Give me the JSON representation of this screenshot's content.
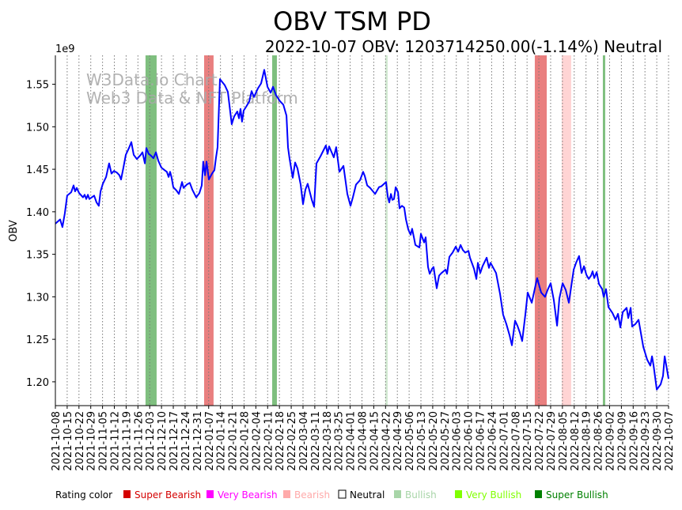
{
  "chart_data": {
    "type": "line",
    "title": "OBV TSM PD",
    "subtitle": "2022-10-07 OBV: 1203714250.00(-1.14%) Neutral",
    "ylabel": "OBV",
    "y_multiplier_label": "1e9",
    "ylim": [
      1.172,
      1.584
    ],
    "yticks": [
      "1.20",
      "1.25",
      "1.30",
      "1.35",
      "1.40",
      "1.45",
      "1.50",
      "1.55"
    ],
    "x_start_date": "2021-10-08",
    "x_range_days": [
      0,
      364
    ],
    "xticks": [
      "2021-10-08",
      "2021-10-15",
      "2021-10-22",
      "2021-10-29",
      "2021-11-05",
      "2021-11-12",
      "2021-11-19",
      "2021-11-26",
      "2021-12-03",
      "2021-12-10",
      "2021-12-17",
      "2021-12-24",
      "2021-12-31",
      "2022-01-07",
      "2022-01-14",
      "2022-01-21",
      "2022-01-28",
      "2022-02-04",
      "2022-02-11",
      "2022-02-18",
      "2022-02-25",
      "2022-03-04",
      "2022-03-11",
      "2022-03-18",
      "2022-03-25",
      "2022-04-01",
      "2022-04-08",
      "2022-04-15",
      "2022-04-22",
      "2022-04-29",
      "2022-05-06",
      "2022-05-13",
      "2022-05-20",
      "2022-05-27",
      "2022-06-03",
      "2022-06-10",
      "2022-06-17",
      "2022-06-24",
      "2022-07-01",
      "2022-07-08",
      "2022-07-15",
      "2022-07-22",
      "2022-07-29",
      "2022-08-05",
      "2022-08-12",
      "2022-08-19",
      "2022-08-26",
      "2022-09-02",
      "2022-09-09",
      "2022-09-16",
      "2022-09-23",
      "2022-09-30",
      "2022-10-07"
    ],
    "grid": "vertical-dotted",
    "watermark": [
      "W3Data.io Chart",
      "Web3 Data & NFT Platform"
    ],
    "series": [
      {
        "name": "OBV",
        "color": "#0000ff",
        "points_day_value": [
          [
            0,
            1.386
          ],
          [
            2.8,
            1.391
          ],
          [
            4.2,
            1.382
          ],
          [
            5.6,
            1.398
          ],
          [
            7.0,
            1.419
          ],
          [
            9.4,
            1.423
          ],
          [
            10.8,
            1.431
          ],
          [
            11.7,
            1.424
          ],
          [
            12.7,
            1.428
          ],
          [
            14.1,
            1.422
          ],
          [
            16.4,
            1.417
          ],
          [
            17.4,
            1.42
          ],
          [
            18.3,
            1.415
          ],
          [
            19.3,
            1.42
          ],
          [
            20.2,
            1.415
          ],
          [
            21.6,
            1.417
          ],
          [
            23.0,
            1.419
          ],
          [
            24.4,
            1.411
          ],
          [
            25.8,
            1.407
          ],
          [
            26.8,
            1.424
          ],
          [
            28.2,
            1.433
          ],
          [
            30.1,
            1.441
          ],
          [
            31.9,
            1.457
          ],
          [
            33.3,
            1.445
          ],
          [
            34.8,
            1.448
          ],
          [
            36.6,
            1.446
          ],
          [
            38.0,
            1.443
          ],
          [
            39.0,
            1.438
          ],
          [
            40.4,
            1.452
          ],
          [
            41.8,
            1.467
          ],
          [
            43.7,
            1.475
          ],
          [
            45.1,
            1.482
          ],
          [
            46.5,
            1.467
          ],
          [
            48.4,
            1.462
          ],
          [
            50.7,
            1.467
          ],
          [
            51.7,
            1.47
          ],
          [
            53.1,
            1.457
          ],
          [
            54.0,
            1.475
          ],
          [
            55.4,
            1.468
          ],
          [
            56.8,
            1.466
          ],
          [
            58.2,
            1.463
          ],
          [
            59.7,
            1.47
          ],
          [
            61.1,
            1.46
          ],
          [
            62.9,
            1.452
          ],
          [
            64.8,
            1.449
          ],
          [
            66.2,
            1.447
          ],
          [
            67.2,
            1.441
          ],
          [
            68.1,
            1.447
          ],
          [
            69.0,
            1.44
          ],
          [
            70.0,
            1.429
          ],
          [
            71.9,
            1.425
          ],
          [
            73.3,
            1.421
          ],
          [
            75.2,
            1.435
          ],
          [
            76.1,
            1.428
          ],
          [
            78.0,
            1.432
          ],
          [
            79.8,
            1.434
          ],
          [
            81.3,
            1.426
          ],
          [
            83.6,
            1.417
          ],
          [
            85.5,
            1.422
          ],
          [
            86.9,
            1.431
          ],
          [
            87.8,
            1.459
          ],
          [
            88.8,
            1.443
          ],
          [
            89.7,
            1.459
          ],
          [
            91.1,
            1.438
          ],
          [
            93.0,
            1.445
          ],
          [
            94.4,
            1.449
          ],
          [
            95.3,
            1.463
          ],
          [
            96.3,
            1.476
          ],
          [
            97.7,
            1.556
          ],
          [
            100.5,
            1.549
          ],
          [
            102.4,
            1.541
          ],
          [
            104.7,
            1.503
          ],
          [
            106.1,
            1.512
          ],
          [
            108.0,
            1.518
          ],
          [
            109.0,
            1.51
          ],
          [
            109.9,
            1.521
          ],
          [
            110.8,
            1.506
          ],
          [
            111.8,
            1.519
          ],
          [
            113.7,
            1.525
          ],
          [
            115.1,
            1.53
          ],
          [
            116.5,
            1.542
          ],
          [
            117.9,
            1.535
          ],
          [
            120.2,
            1.545
          ],
          [
            122.1,
            1.551
          ],
          [
            124.0,
            1.567
          ],
          [
            125.9,
            1.547
          ],
          [
            127.8,
            1.54
          ],
          [
            129.2,
            1.547
          ],
          [
            131.0,
            1.537
          ],
          [
            133.4,
            1.53
          ],
          [
            135.3,
            1.526
          ],
          [
            137.2,
            1.513
          ],
          [
            138.1,
            1.476
          ],
          [
            139.0,
            1.463
          ],
          [
            140.9,
            1.44
          ],
          [
            142.3,
            1.458
          ],
          [
            143.7,
            1.451
          ],
          [
            145.6,
            1.432
          ],
          [
            147.0,
            1.409
          ],
          [
            148.4,
            1.426
          ],
          [
            149.8,
            1.433
          ],
          [
            152.2,
            1.414
          ],
          [
            153.6,
            1.406
          ],
          [
            155.0,
            1.457
          ],
          [
            157.3,
            1.465
          ],
          [
            160.6,
            1.478
          ],
          [
            161.6,
            1.468
          ],
          [
            162.5,
            1.477
          ],
          [
            165.3,
            1.464
          ],
          [
            166.7,
            1.476
          ],
          [
            168.6,
            1.447
          ],
          [
            171.0,
            1.454
          ],
          [
            173.3,
            1.421
          ],
          [
            175.2,
            1.407
          ],
          [
            176.6,
            1.417
          ],
          [
            178.5,
            1.432
          ],
          [
            180.8,
            1.437
          ],
          [
            182.7,
            1.447
          ],
          [
            183.7,
            1.442
          ],
          [
            185.1,
            1.431
          ],
          [
            186.9,
            1.428
          ],
          [
            189.8,
            1.421
          ],
          [
            192.1,
            1.429
          ],
          [
            193.5,
            1.43
          ],
          [
            196.3,
            1.435
          ],
          [
            197.3,
            1.418
          ],
          [
            198.2,
            1.411
          ],
          [
            199.2,
            1.421
          ],
          [
            200.1,
            1.414
          ],
          [
            201.0,
            1.415
          ],
          [
            202.0,
            1.429
          ],
          [
            203.4,
            1.423
          ],
          [
            204.3,
            1.404
          ],
          [
            205.7,
            1.407
          ],
          [
            207.1,
            1.405
          ],
          [
            208.1,
            1.391
          ],
          [
            209.5,
            1.379
          ],
          [
            210.9,
            1.373
          ],
          [
            211.8,
            1.38
          ],
          [
            212.8,
            1.37
          ],
          [
            213.7,
            1.361
          ],
          [
            216.1,
            1.358
          ],
          [
            217.0,
            1.374
          ],
          [
            218.9,
            1.364
          ],
          [
            219.8,
            1.37
          ],
          [
            221.2,
            1.335
          ],
          [
            222.2,
            1.327
          ],
          [
            223.6,
            1.333
          ],
          [
            224.5,
            1.335
          ],
          [
            226.4,
            1.31
          ],
          [
            227.8,
            1.325
          ],
          [
            229.2,
            1.328
          ],
          [
            231.6,
            1.332
          ],
          [
            232.5,
            1.327
          ],
          [
            233.9,
            1.347
          ],
          [
            235.8,
            1.352
          ],
          [
            237.7,
            1.359
          ],
          [
            239.1,
            1.353
          ],
          [
            240.5,
            1.361
          ],
          [
            241.9,
            1.355
          ],
          [
            243.3,
            1.352
          ],
          [
            245.2,
            1.354
          ],
          [
            246.1,
            1.346
          ],
          [
            248.5,
            1.333
          ],
          [
            249.9,
            1.321
          ],
          [
            250.8,
            1.34
          ],
          [
            252.2,
            1.328
          ],
          [
            253.6,
            1.336
          ],
          [
            256.0,
            1.346
          ],
          [
            257.4,
            1.334
          ],
          [
            258.3,
            1.34
          ],
          [
            261.6,
            1.328
          ],
          [
            264.0,
            1.303
          ],
          [
            265.8,
            1.279
          ],
          [
            267.7,
            1.268
          ],
          [
            269.6,
            1.255
          ],
          [
            271.0,
            1.243
          ],
          [
            272.9,
            1.272
          ],
          [
            274.3,
            1.266
          ],
          [
            275.7,
            1.258
          ],
          [
            277.1,
            1.248
          ],
          [
            279.0,
            1.279
          ],
          [
            280.4,
            1.305
          ],
          [
            282.8,
            1.293
          ],
          [
            286.0,
            1.322
          ],
          [
            288.4,
            1.305
          ],
          [
            290.7,
            1.3
          ],
          [
            292.2,
            1.308
          ],
          [
            294.0,
            1.316
          ],
          [
            295.9,
            1.296
          ],
          [
            297.8,
            1.266
          ],
          [
            299.2,
            1.298
          ],
          [
            301.1,
            1.316
          ],
          [
            303.0,
            1.308
          ],
          [
            304.8,
            1.293
          ],
          [
            307.7,
            1.332
          ],
          [
            309.1,
            1.34
          ],
          [
            310.9,
            1.348
          ],
          [
            312.4,
            1.328
          ],
          [
            313.8,
            1.336
          ],
          [
            315.2,
            1.326
          ],
          [
            316.6,
            1.321
          ],
          [
            318.0,
            1.325
          ],
          [
            318.9,
            1.33
          ],
          [
            319.9,
            1.322
          ],
          [
            321.3,
            1.329
          ],
          [
            322.7,
            1.315
          ],
          [
            324.6,
            1.309
          ],
          [
            325.5,
            1.3
          ],
          [
            326.9,
            1.309
          ],
          [
            328.3,
            1.288
          ],
          [
            330.7,
            1.281
          ],
          [
            332.6,
            1.273
          ],
          [
            334.0,
            1.28
          ],
          [
            335.4,
            1.264
          ],
          [
            336.8,
            1.282
          ],
          [
            339.1,
            1.287
          ],
          [
            340.1,
            1.275
          ],
          [
            341.5,
            1.287
          ],
          [
            342.4,
            1.265
          ],
          [
            344.3,
            1.268
          ],
          [
            346.2,
            1.273
          ],
          [
            349.0,
            1.241
          ],
          [
            351.3,
            1.226
          ],
          [
            353.2,
            1.219
          ],
          [
            354.2,
            1.23
          ],
          [
            355.1,
            1.219
          ],
          [
            357.0,
            1.191
          ],
          [
            359.3,
            1.197
          ],
          [
            360.7,
            1.207
          ],
          [
            361.7,
            1.23
          ],
          [
            362.6,
            1.22
          ],
          [
            364.0,
            1.2037
          ]
        ]
      }
    ],
    "rating_bands": [
      {
        "rating": "Super Bullish",
        "start_day": 53.5,
        "end_day": 60.1
      },
      {
        "rating": "Super Bearish",
        "start_day": 88.3,
        "end_day": 93.9
      },
      {
        "rating": "Super Bullish",
        "start_day": 128.7,
        "end_day": 131.5
      },
      {
        "rating": "Bullish",
        "start_day": 195.9,
        "end_day": 197.3
      },
      {
        "rating": "Super Bearish",
        "start_day": 284.6,
        "end_day": 291.7
      },
      {
        "rating": "Bearish",
        "start_day": 300.6,
        "end_day": 306.2
      },
      {
        "rating": "Super Bullish",
        "start_day": 325.0,
        "end_day": 326.4
      }
    ],
    "legend": {
      "title": "Rating color",
      "placement": "bottom",
      "items": [
        {
          "label": "Super Bearish",
          "color": "#d40000"
        },
        {
          "label": "Very Bearish",
          "color": "#ff00ff"
        },
        {
          "label": "Bearish",
          "color": "#ffaaaa"
        },
        {
          "label": "Neutral",
          "color": "#ffffff"
        },
        {
          "label": "Bullish",
          "color": "#a8d5a8"
        },
        {
          "label": "Very Bullish",
          "color": "#80ff00"
        },
        {
          "label": "Super Bullish",
          "color": "#008000"
        }
      ]
    }
  }
}
